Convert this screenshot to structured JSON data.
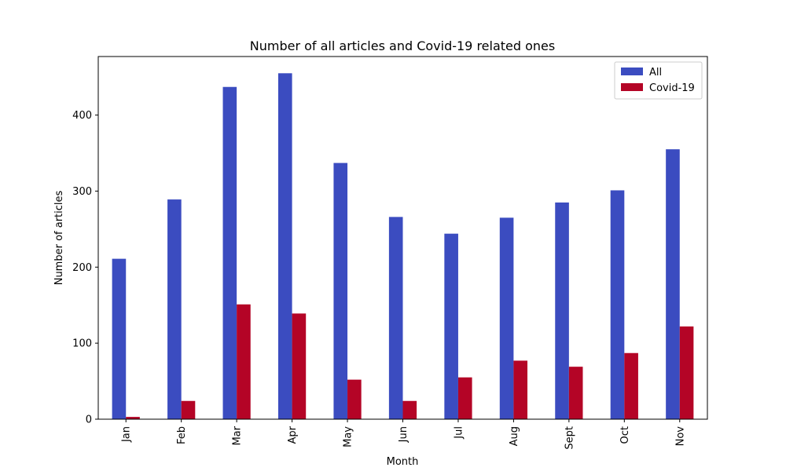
{
  "chart_data": {
    "type": "bar",
    "title": "Number of all articles and Covid-19 related ones",
    "xlabel": "Month",
    "ylabel": "Number of articles",
    "categories": [
      "Jan",
      "Feb",
      "Mar",
      "Apr",
      "May",
      "Jun",
      "Jul",
      "Aug",
      "Sept",
      "Oct",
      "Nov"
    ],
    "series": [
      {
        "name": "All",
        "color": "#3b4cc0",
        "values": [
          211,
          289,
          437,
          455,
          337,
          266,
          244,
          265,
          285,
          301,
          355
        ]
      },
      {
        "name": "Covid-19",
        "color": "#b40426",
        "values": [
          3,
          24,
          151,
          139,
          52,
          24,
          55,
          77,
          69,
          87,
          122
        ]
      }
    ],
    "ylim": [
      0,
      477
    ],
    "yticks": [
      0,
      100,
      200,
      300,
      400
    ],
    "grid": false,
    "legend": "top-right"
  }
}
